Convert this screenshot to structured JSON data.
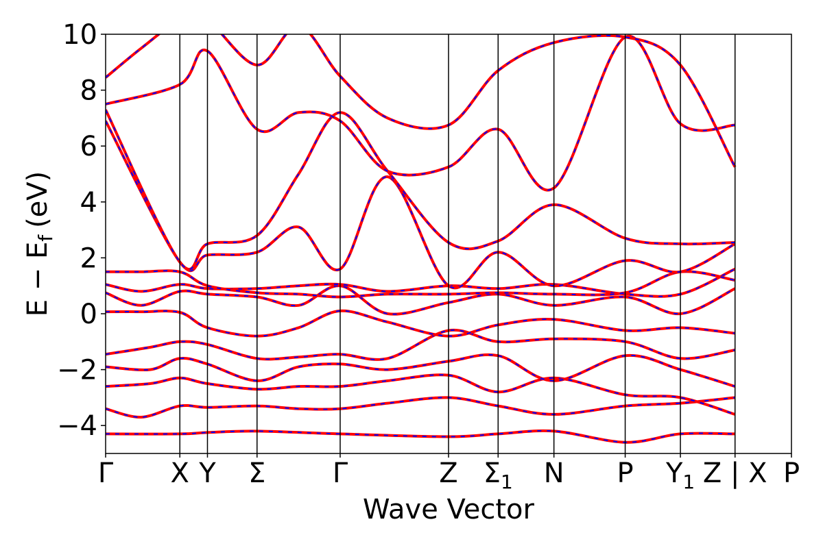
{
  "chart_data": {
    "type": "line",
    "xlabel": "Wave Vector",
    "ylabel": "E − E",
    "ylabel_subscript": "f",
    "ylabel_unit": "(eV)",
    "ylim": [
      -5,
      10
    ],
    "yticks": [
      10,
      8,
      6,
      4,
      2,
      0,
      -2,
      -4
    ],
    "ytick_labels": [
      "10",
      "8",
      "6",
      "4",
      "2",
      "0",
      "−2",
      "−4"
    ],
    "xlim": [
      0,
      23.1
    ],
    "kpoints": [
      {
        "label": "Γ",
        "sub": "",
        "x": 0
      },
      {
        "label": "X",
        "sub": "",
        "x": 2.5
      },
      {
        "label": "Y",
        "sub": "",
        "x": 3.43
      },
      {
        "label": "Σ",
        "sub": "",
        "x": 5.1
      },
      {
        "label": "Γ",
        "sub": "",
        "x": 7.9
      },
      {
        "label": "Z",
        "sub": "",
        "x": 11.55
      },
      {
        "label": "Σ",
        "sub": "1",
        "x": 13.22
      },
      {
        "label": "N",
        "sub": "",
        "x": 15.1
      },
      {
        "label": "P",
        "sub": "",
        "x": 17.5
      },
      {
        "label": "Y",
        "sub": "1",
        "x": 19.36
      },
      {
        "label": "Z | X",
        "sub": "",
        "x": 21.2
      },
      {
        "label": "P",
        "sub": "",
        "x": 23.1
      }
    ],
    "series_colors": {
      "solid": "#ff0000",
      "dashed": "#0000ff"
    },
    "bands": [
      {
        "x": [
          0,
          2.5,
          3.43,
          5.1,
          7.9,
          11.55,
          13.22,
          15.1,
          17.5,
          19.36,
          21.2
        ],
        "y": [
          -4.3,
          -4.3,
          -4.25,
          -4.2,
          -4.3,
          -4.4,
          -4.3,
          -4.2,
          -4.6,
          -4.3,
          -4.3
        ]
      },
      {
        "x": [
          0,
          1.2,
          2.5,
          3.43,
          5.1,
          6.5,
          7.9,
          9.5,
          11.55,
          13.22,
          15.1,
          17.5,
          19.36,
          21.2
        ],
        "y": [
          -3.4,
          -3.7,
          -3.3,
          -3.35,
          -3.3,
          -3.4,
          -3.4,
          -3.2,
          -3.0,
          -3.3,
          -3.6,
          -3.3,
          -3.2,
          -3.0
        ]
      },
      {
        "x": [
          0,
          1.5,
          2.5,
          3.43,
          5.1,
          6.5,
          7.9,
          9.5,
          11.55,
          13.22,
          15.1,
          17.5,
          19.36,
          21.2
        ],
        "y": [
          -2.6,
          -2.5,
          -2.3,
          -2.5,
          -2.7,
          -2.6,
          -2.6,
          -2.4,
          -2.2,
          -2.8,
          -2.3,
          -2.9,
          -3.0,
          -3.6
        ]
      },
      {
        "x": [
          0,
          1.5,
          2.5,
          3.43,
          5.1,
          6.5,
          7.9,
          9.5,
          11.55,
          13.22,
          15.1,
          17.5,
          19.36,
          21.2
        ],
        "y": [
          -1.9,
          -2.0,
          -1.6,
          -1.8,
          -2.4,
          -1.9,
          -1.8,
          -2.0,
          -1.7,
          -1.5,
          -2.4,
          -1.5,
          -2.0,
          -2.6
        ]
      },
      {
        "x": [
          0,
          1.5,
          2.5,
          3.43,
          5.1,
          6.5,
          7.9,
          9.5,
          11.55,
          13.22,
          15.1,
          17.5,
          19.36,
          21.2
        ],
        "y": [
          -1.45,
          -1.2,
          -1.0,
          -1.1,
          -1.6,
          -1.55,
          -1.45,
          -1.6,
          -0.6,
          -1.0,
          -0.9,
          -1.0,
          -1.6,
          -1.3
        ]
      },
      {
        "x": [
          0,
          1.2,
          2.5,
          3.43,
          5.1,
          6.5,
          7.9,
          9.5,
          11.55,
          13.22,
          15.1,
          17.5,
          19.36,
          21.2
        ],
        "y": [
          0.07,
          0.07,
          0.05,
          -0.5,
          -0.8,
          -0.5,
          0.1,
          -0.3,
          -0.8,
          -0.4,
          -0.2,
          -0.6,
          -0.5,
          -0.7
        ]
      },
      {
        "x": [
          0,
          1.2,
          2.5,
          3.43,
          5.1,
          6.5,
          7.9,
          9.5,
          11.55,
          13.22,
          15.1,
          17.5,
          19.36,
          21.2
        ],
        "y": [
          0.75,
          0.3,
          0.8,
          0.7,
          0.6,
          0.3,
          1.0,
          0.0,
          0.4,
          0.7,
          0.3,
          0.6,
          0.0,
          0.9
        ]
      },
      {
        "x": [
          0,
          1.2,
          2.5,
          3.43,
          5.1,
          6.5,
          7.9,
          9.5,
          11.55,
          13.22,
          15.1,
          17.5,
          19.36,
          21.2
        ],
        "y": [
          1.05,
          0.8,
          1.05,
          0.9,
          0.9,
          1.0,
          1.05,
          0.8,
          1.0,
          0.9,
          1.05,
          0.7,
          0.7,
          1.6
        ]
      },
      {
        "x": [
          0,
          1.2,
          2.5,
          3.43,
          5.1,
          6.5,
          7.9,
          9.5,
          11.55,
          13.22,
          15.1,
          17.5,
          19.36,
          21.2
        ],
        "y": [
          1.5,
          1.5,
          1.5,
          1.0,
          0.75,
          0.7,
          0.6,
          0.7,
          0.7,
          0.75,
          0.7,
          0.75,
          1.5,
          1.2
        ]
      },
      {
        "x": [
          0,
          2.5,
          3.43,
          5.1,
          6.5,
          7.9,
          9.5,
          11.55,
          13.22,
          15.1,
          17.5,
          19.36,
          21.2
        ],
        "y": [
          6.9,
          1.85,
          2.1,
          2.2,
          3.1,
          1.6,
          4.9,
          1.0,
          2.2,
          1.0,
          1.9,
          1.5,
          2.5
        ]
      },
      {
        "x": [
          0,
          2.5,
          3.43,
          5.1,
          6.5,
          7.9,
          9.5,
          11.55,
          13.22,
          15.1,
          17.5,
          19.36,
          21.2
        ],
        "y": [
          7.3,
          1.85,
          2.5,
          2.8,
          5.0,
          7.2,
          5.1,
          2.55,
          2.6,
          3.9,
          2.7,
          2.5,
          2.55
        ]
      },
      {
        "x": [
          0,
          2.5,
          3.43,
          5.1,
          6.5,
          7.9,
          9.5,
          11.55,
          13.22,
          15.1,
          17.5,
          19.36,
          21.2
        ],
        "y": [
          7.5,
          8.2,
          9.4,
          6.6,
          7.2,
          6.9,
          5.1,
          5.25,
          6.6,
          4.5,
          9.9,
          6.8,
          6.75
        ]
      },
      {
        "x": [
          0,
          1.2,
          2.5,
          3.43,
          5.1,
          6.5,
          7.9,
          9.5,
          11.55,
          13.22,
          15.1,
          17.5,
          19.36,
          21.2
        ],
        "y": [
          8.45,
          9.5,
          10.5,
          10.5,
          8.9,
          10.3,
          8.5,
          7.0,
          6.75,
          8.7,
          9.7,
          9.9,
          8.9,
          5.25
        ]
      }
    ]
  }
}
